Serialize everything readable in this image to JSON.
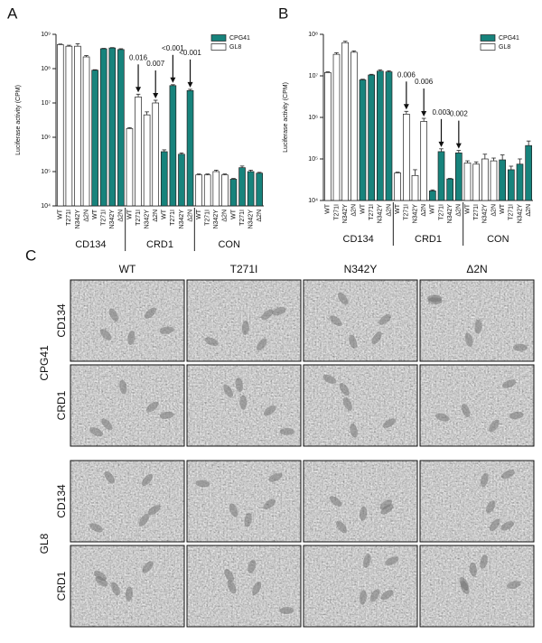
{
  "chart_data": [
    {
      "type": "bar",
      "panel_label": "A",
      "y_label": "Luciferase activity (CPM)",
      "log_scale": true,
      "legend": "upper right",
      "categories": [
        "WT",
        "T271I",
        "N342Y",
        "Δ2N",
        "WT",
        "T271I",
        "N342Y",
        "Δ2N",
        "WT",
        "T271I",
        "N342Y",
        "Δ2N",
        "WT",
        "T271I",
        "N342Y",
        "Δ2N",
        "WT",
        "T271I",
        "N342Y",
        "Δ2N",
        "WT",
        "T271I",
        "N342Y",
        "Δ2N"
      ],
      "groups": [
        "CD134",
        "CRD1",
        "CON"
      ],
      "series": [
        {
          "name": "CPG41",
          "color": "#17837c",
          "values": [
            null,
            null,
            null,
            null,
            90000000,
            380000000,
            400000000,
            360000000,
            null,
            null,
            null,
            null,
            380000,
            32000000,
            320000,
            23000000,
            null,
            null,
            null,
            null,
            60000,
            130000,
            100000,
            90000
          ],
          "errors": [
            null,
            null,
            null,
            null,
            3000000,
            10000000,
            10000000,
            20000000,
            null,
            null,
            null,
            null,
            50000,
            2000000,
            30000,
            2000000,
            null,
            null,
            null,
            null,
            3000,
            15000,
            10000,
            5000
          ],
          "annotations": [
            null,
            null,
            null,
            null,
            null,
            null,
            null,
            null,
            null,
            null,
            null,
            null,
            null,
            "<0.001",
            null,
            "<0.001",
            null,
            null,
            null,
            null,
            null,
            null,
            null,
            null
          ]
        },
        {
          "name": "GL8",
          "color": "#ffffff",
          "values": [
            500000000,
            450000000,
            450000000,
            220000000,
            null,
            null,
            null,
            null,
            1800000,
            15000000,
            4500000,
            10000000,
            null,
            null,
            null,
            null,
            80000,
            80000,
            100000,
            80000,
            null,
            null,
            null,
            null
          ],
          "errors": [
            20000000,
            30000000,
            80000000,
            20000000,
            null,
            null,
            null,
            null,
            100000,
            3000000,
            1000000,
            2000000,
            null,
            null,
            null,
            null,
            5000,
            5000,
            10000,
            5000,
            null,
            null,
            null,
            null
          ],
          "annotations": [
            null,
            null,
            null,
            null,
            null,
            null,
            null,
            null,
            null,
            "0.016",
            null,
            "0.007",
            null,
            null,
            null,
            null,
            null,
            null,
            null,
            null,
            null,
            null,
            null,
            null
          ]
        }
      ],
      "ylim": [
        10000,
        1000000000
      ],
      "yticks": [
        {
          "value": 10000,
          "label": "10⁴"
        },
        {
          "value": 100000,
          "label": "10⁵"
        },
        {
          "value": 1000000,
          "label": "10⁶"
        },
        {
          "value": 10000000,
          "label": "10⁷"
        },
        {
          "value": 100000000,
          "label": "10⁸"
        },
        {
          "value": 1000000000,
          "label": "10⁹"
        }
      ]
    },
    {
      "type": "bar",
      "panel_label": "B",
      "y_label": "Luciferase activity (CPM)",
      "log_scale": true,
      "legend": "upper right",
      "categories": [
        "WT",
        "T271I",
        "N342Y",
        "Δ2N",
        "WT",
        "T271I",
        "N342Y",
        "Δ2N",
        "WT",
        "T271I",
        "N342Y",
        "Δ2N",
        "WT",
        "T271I",
        "N342Y",
        "Δ2N",
        "WT",
        "T271I",
        "N342Y",
        "Δ2N",
        "WT",
        "T271I",
        "N342Y",
        "Δ2N"
      ],
      "groups": [
        "CD134",
        "CRD1",
        "CON"
      ],
      "series": [
        {
          "name": "CPG41",
          "color": "#17837c",
          "values": [
            null,
            null,
            null,
            null,
            8000000,
            10500000,
            13000000,
            12500000,
            null,
            null,
            null,
            null,
            17000,
            150000,
            33000,
            140000,
            null,
            null,
            null,
            null,
            95000,
            55000,
            75000,
            210000
          ],
          "errors": [
            null,
            null,
            null,
            null,
            300000,
            400000,
            1000000,
            800000,
            null,
            null,
            null,
            null,
            1000,
            25000,
            1000,
            20000,
            null,
            null,
            null,
            null,
            30000,
            12000,
            25000,
            60000
          ],
          "annotations": [
            null,
            null,
            null,
            null,
            null,
            null,
            null,
            null,
            null,
            null,
            null,
            null,
            null,
            "0.003",
            null,
            "0.002",
            null,
            null,
            null,
            null,
            null,
            null,
            null,
            null
          ]
        },
        {
          "name": "GL8",
          "color": "#ffffff",
          "values": [
            12000000,
            33000000,
            63000000,
            37000000,
            null,
            null,
            null,
            null,
            46000,
            1200000,
            40000,
            800000,
            null,
            null,
            null,
            null,
            80000,
            75000,
            100000,
            90000,
            null,
            null,
            null,
            null
          ],
          "errors": [
            500000,
            3000000,
            5000000,
            3000000,
            null,
            null,
            null,
            null,
            2000,
            200000,
            15000,
            150000,
            null,
            null,
            null,
            null,
            10000,
            10000,
            30000,
            15000,
            null,
            null,
            null,
            null
          ],
          "annotations": [
            null,
            null,
            null,
            null,
            null,
            null,
            null,
            null,
            null,
            "0.006",
            null,
            "0.006",
            null,
            null,
            null,
            null,
            null,
            null,
            null,
            null,
            null,
            null,
            null,
            null
          ]
        }
      ],
      "ylim": [
        10000,
        100000000
      ],
      "yticks": [
        {
          "value": 10000,
          "label": "10⁴"
        },
        {
          "value": 100000,
          "label": "10⁵"
        },
        {
          "value": 1000000,
          "label": "10⁶"
        },
        {
          "value": 10000000,
          "label": "10⁷"
        },
        {
          "value": 100000000,
          "label": "10⁸"
        }
      ]
    }
  ],
  "panel_c": {
    "label": "C",
    "columns": [
      "WT",
      "T271I",
      "N342Y",
      "Δ2N"
    ],
    "groups": [
      {
        "name": "CPG41",
        "rows": [
          "CD134",
          "CRD1"
        ]
      },
      {
        "name": "GL8",
        "rows": [
          "CD134",
          "CRD1"
        ]
      }
    ]
  }
}
